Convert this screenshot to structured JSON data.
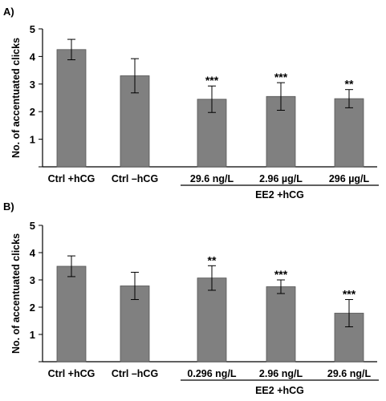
{
  "chart_data": [
    {
      "type": "bar",
      "panel_label": "A)",
      "categories": [
        "Ctrl +hCG",
        "Ctrl –hCG",
        "29.6 ng/L",
        "2.96 µg/L",
        "296 µg/L"
      ],
      "values": [
        4.25,
        3.3,
        2.45,
        2.55,
        2.47
      ],
      "errors": [
        0.37,
        0.62,
        0.48,
        0.5,
        0.33
      ],
      "significance": [
        "",
        "",
        "***",
        "***",
        "**"
      ],
      "group_label": "EE2 +hCG",
      "ylabel": "No. of accentuated clicks",
      "yticks": [
        "1",
        "2",
        "3",
        "4",
        "5"
      ],
      "ylim": [
        0,
        5
      ],
      "bar_color": "#808080",
      "grid": false
    },
    {
      "type": "bar",
      "panel_label": "B)",
      "categories": [
        "Ctrl +hCG",
        "Ctrl –hCG",
        "0.296 ng/L",
        "2.96 ng/L",
        "29.6 ng/L"
      ],
      "values": [
        3.5,
        2.78,
        3.07,
        2.75,
        1.78
      ],
      "errors": [
        0.38,
        0.5,
        0.45,
        0.25,
        0.5
      ],
      "significance": [
        "",
        "",
        "**",
        "***",
        "***"
      ],
      "group_label": "EE2 +hCG",
      "ylabel": "No. of accentuated clicks",
      "yticks": [
        "1",
        "2",
        "3",
        "4",
        "5"
      ],
      "ylim": [
        0,
        5
      ],
      "bar_color": "#808080",
      "grid": false
    }
  ]
}
